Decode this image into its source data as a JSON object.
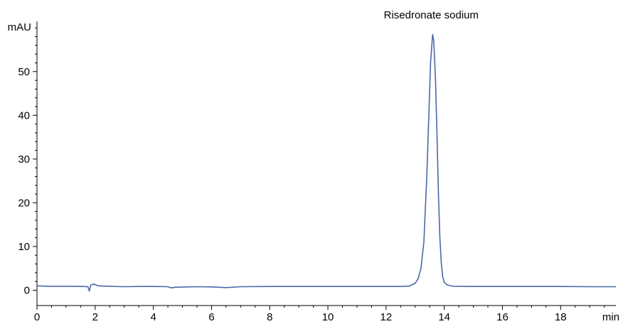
{
  "chart_data": {
    "type": "line",
    "title": "",
    "xlabel": "",
    "ylabel": "",
    "x_unit_label": "min",
    "y_unit_label": "mAU",
    "xlim": [
      0,
      19.9
    ],
    "ylim": [
      -3.5,
      61.5
    ],
    "x_ticks": [
      0,
      2,
      4,
      6,
      8,
      10,
      12,
      14,
      16,
      18
    ],
    "y_ticks": [
      0,
      10,
      20,
      30,
      40,
      50
    ],
    "grid": false,
    "line_color": "#4a6aa8",
    "annotations": [
      {
        "text": "Risedronate sodium",
        "x": 13.6,
        "y": 58.5
      }
    ],
    "series": [
      {
        "points": [
          [
            0.0,
            1.0
          ],
          [
            0.4,
            0.9
          ],
          [
            0.8,
            0.9
          ],
          [
            1.2,
            0.9
          ],
          [
            1.6,
            0.85
          ],
          [
            1.75,
            0.8
          ],
          [
            1.8,
            -0.2
          ],
          [
            1.85,
            1.2
          ],
          [
            1.95,
            1.4
          ],
          [
            2.1,
            1.0
          ],
          [
            2.5,
            0.9
          ],
          [
            3.0,
            0.8
          ],
          [
            3.5,
            0.85
          ],
          [
            4.0,
            0.85
          ],
          [
            4.5,
            0.8
          ],
          [
            4.6,
            0.55
          ],
          [
            4.8,
            0.7
          ],
          [
            5.5,
            0.8
          ],
          [
            6.0,
            0.75
          ],
          [
            6.5,
            0.6
          ],
          [
            7.0,
            0.8
          ],
          [
            8.0,
            0.85
          ],
          [
            9.0,
            0.85
          ],
          [
            10.0,
            0.85
          ],
          [
            11.0,
            0.85
          ],
          [
            12.0,
            0.85
          ],
          [
            12.5,
            0.85
          ],
          [
            12.8,
            0.95
          ],
          [
            13.0,
            1.6
          ],
          [
            13.1,
            2.6
          ],
          [
            13.2,
            5.0
          ],
          [
            13.3,
            11.0
          ],
          [
            13.4,
            26.0
          ],
          [
            13.47,
            40.0
          ],
          [
            13.53,
            52.0
          ],
          [
            13.6,
            58.5
          ],
          [
            13.64,
            57.0
          ],
          [
            13.7,
            48.0
          ],
          [
            13.75,
            36.0
          ],
          [
            13.8,
            22.0
          ],
          [
            13.85,
            12.0
          ],
          [
            13.9,
            6.0
          ],
          [
            13.95,
            3.0
          ],
          [
            14.0,
            1.8
          ],
          [
            14.1,
            1.2
          ],
          [
            14.3,
            0.9
          ],
          [
            15.0,
            0.85
          ],
          [
            16.0,
            0.85
          ],
          [
            17.0,
            0.85
          ],
          [
            18.0,
            0.85
          ],
          [
            19.0,
            0.8
          ],
          [
            19.9,
            0.8
          ]
        ]
      }
    ]
  }
}
